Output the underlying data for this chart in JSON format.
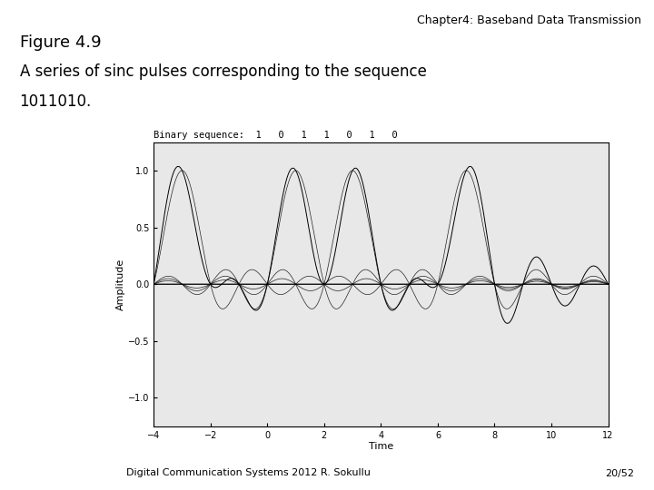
{
  "title_right": "Chapter4: Baseband Data Transmission",
  "fig_label": "Figure 4.9",
  "fig_desc_line1": "A series of sinc pulses corresponding to the sequence",
  "fig_desc_line2": "1011010.",
  "footer_left": "Digital Communication Systems 2012 R. Sokullu",
  "footer_right": "20/52",
  "binary_sequence": [
    1,
    0,
    1,
    1,
    0,
    1,
    0
  ],
  "xlim": [
    -4,
    12
  ],
  "ylim": [
    -1.25,
    1.25
  ],
  "xlabel": "Time",
  "ylabel": "Amplitude",
  "yticks": [
    -1.0,
    -0.5,
    0.0,
    0.5,
    1.0
  ],
  "xticks": [
    -4,
    -2,
    0,
    2,
    4,
    6,
    8,
    10,
    12
  ],
  "bg_color": "#ffffff",
  "plot_bg": "#e8e8e8",
  "line_color": "#000000",
  "centers": [
    -3,
    -1,
    1,
    3,
    5,
    7,
    9
  ]
}
